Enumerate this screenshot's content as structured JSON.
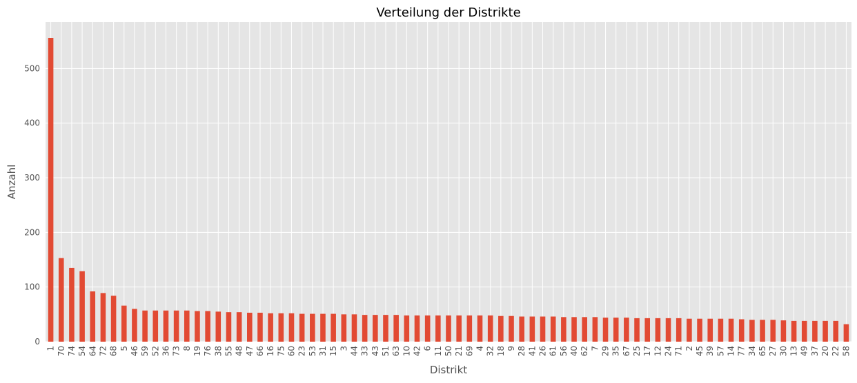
{
  "chart_data": {
    "type": "bar",
    "title": "Verteilung der Distrikte",
    "xlabel": "Distrikt",
    "ylabel": "Anzahl",
    "ylim": [
      0,
      585
    ],
    "yticks": [
      0,
      100,
      200,
      300,
      400,
      500
    ],
    "grid": true,
    "legend": "none",
    "bar_color": "#E24A33",
    "background_color": "#E5E5E5",
    "grid_color": "#FFFFFF",
    "categories": [
      "1",
      "70",
      "74",
      "54",
      "64",
      "72",
      "68",
      "5",
      "46",
      "59",
      "52",
      "36",
      "73",
      "8",
      "19",
      "76",
      "38",
      "55",
      "48",
      "47",
      "66",
      "16",
      "75",
      "60",
      "23",
      "53",
      "31",
      "15",
      "3",
      "44",
      "33",
      "43",
      "51",
      "63",
      "10",
      "42",
      "6",
      "11",
      "50",
      "21",
      "69",
      "4",
      "32",
      "18",
      "9",
      "28",
      "41",
      "26",
      "61",
      "56",
      "40",
      "62",
      "7",
      "29",
      "35",
      "67",
      "25",
      "17",
      "12",
      "24",
      "71",
      "2",
      "45",
      "39",
      "57",
      "14",
      "77",
      "34",
      "65",
      "27",
      "30",
      "13",
      "49",
      "37",
      "20",
      "22",
      "58"
    ],
    "values": [
      556,
      153,
      135,
      129,
      92,
      89,
      84,
      66,
      60,
      57,
      57,
      57,
      57,
      57,
      56,
      56,
      55,
      54,
      54,
      53,
      53,
      52,
      52,
      52,
      51,
      51,
      51,
      51,
      50,
      50,
      49,
      49,
      49,
      49,
      48,
      48,
      48,
      48,
      48,
      48,
      48,
      48,
      48,
      47,
      47,
      46,
      46,
      46,
      46,
      45,
      45,
      45,
      45,
      44,
      44,
      44,
      43,
      43,
      43,
      43,
      43,
      42,
      42,
      42,
      42,
      42,
      41,
      40,
      40,
      40,
      39,
      38,
      38,
      38,
      38,
      38,
      32
    ]
  }
}
